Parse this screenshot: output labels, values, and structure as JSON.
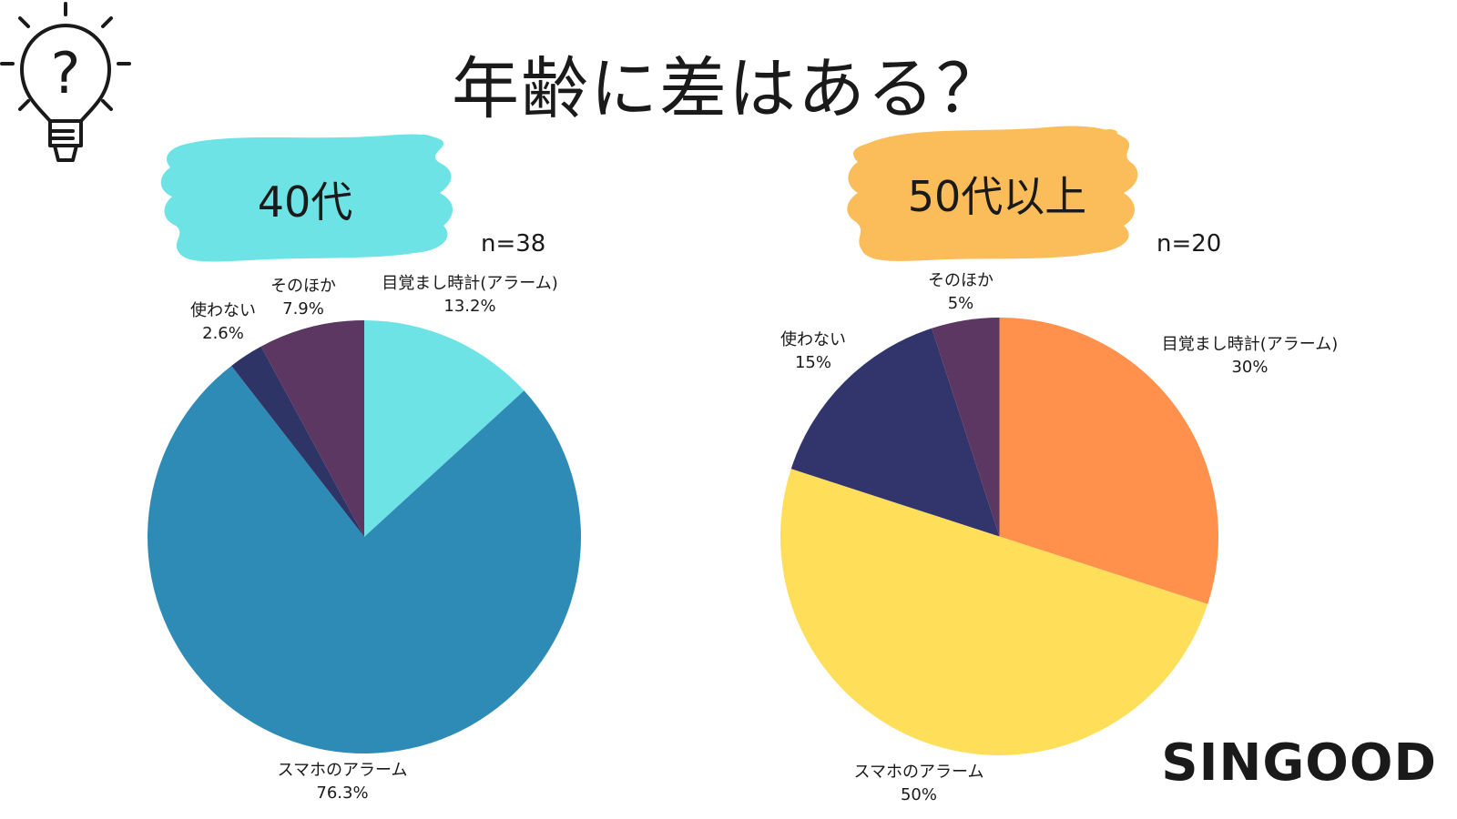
{
  "title": "年齢に差はある？",
  "brand": "SINGOOD",
  "icon": "lightbulb-question-icon",
  "chart_data": [
    {
      "type": "pie",
      "title": "40代",
      "badge_color": "#6de3e6",
      "sample": "n=38",
      "slices": [
        {
          "label": "目覚まし時計(アラーム)",
          "value": 13.2,
          "display": "13.2%",
          "color": "#6de3e6"
        },
        {
          "label": "スマホのアラーム",
          "value": 76.3,
          "display": "76.3%",
          "color": "#2e8bb6"
        },
        {
          "label": "使わない",
          "value": 2.6,
          "display": "2.6%",
          "color": "#2f3467"
        },
        {
          "label": "そのほか",
          "value": 7.9,
          "display": "7.9%",
          "color": "#5b3762"
        }
      ]
    },
    {
      "type": "pie",
      "title": "50代以上",
      "badge_color": "#fbbd5a",
      "sample": "n=20",
      "slices": [
        {
          "label": "目覚まし時計(アラーム)",
          "value": 30,
          "display": "30%",
          "color": "#ff914d"
        },
        {
          "label": "スマホのアラーム",
          "value": 50,
          "display": "50%",
          "color": "#ffde59"
        },
        {
          "label": "使わない",
          "value": 15,
          "display": "15%",
          "color": "#32356b"
        },
        {
          "label": "そのほか",
          "value": 5,
          "display": "5%",
          "color": "#5b3762"
        }
      ]
    }
  ]
}
